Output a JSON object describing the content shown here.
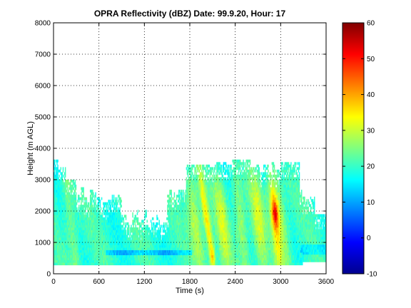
{
  "chart_data": {
    "type": "heatmap",
    "title": "OPRA Reflectivity (dBZ)  Date: 99.9.20, Hour: 17",
    "xlabel": "Time (s)",
    "ylabel": "Height (m AGL)",
    "xlim": [
      0,
      3600
    ],
    "ylim": [
      0,
      8000
    ],
    "x_ticks": [
      "0",
      "600",
      "1200",
      "1800",
      "2400",
      "3000",
      "3600"
    ],
    "y_ticks": [
      "0",
      "1000",
      "2000",
      "3000",
      "4000",
      "5000",
      "6000",
      "7000",
      "8000"
    ],
    "x_tick_values": [
      0,
      600,
      1200,
      1800,
      2400,
      3000,
      3600
    ],
    "y_tick_values": [
      0,
      1000,
      2000,
      3000,
      4000,
      5000,
      6000,
      7000,
      8000
    ],
    "grid": true,
    "colormap": "jet",
    "colorbar": {
      "range": [
        -10,
        60
      ],
      "tick_values": [
        -10,
        0,
        10,
        20,
        30,
        40,
        50,
        60
      ],
      "tick_labels": [
        "-10",
        "0",
        "10",
        "20",
        "30",
        "40",
        "50",
        "60"
      ],
      "position": "right"
    },
    "data_extent": {
      "time_range": [
        0,
        3600
      ],
      "height_range": [
        280,
        3700
      ]
    }
  }
}
